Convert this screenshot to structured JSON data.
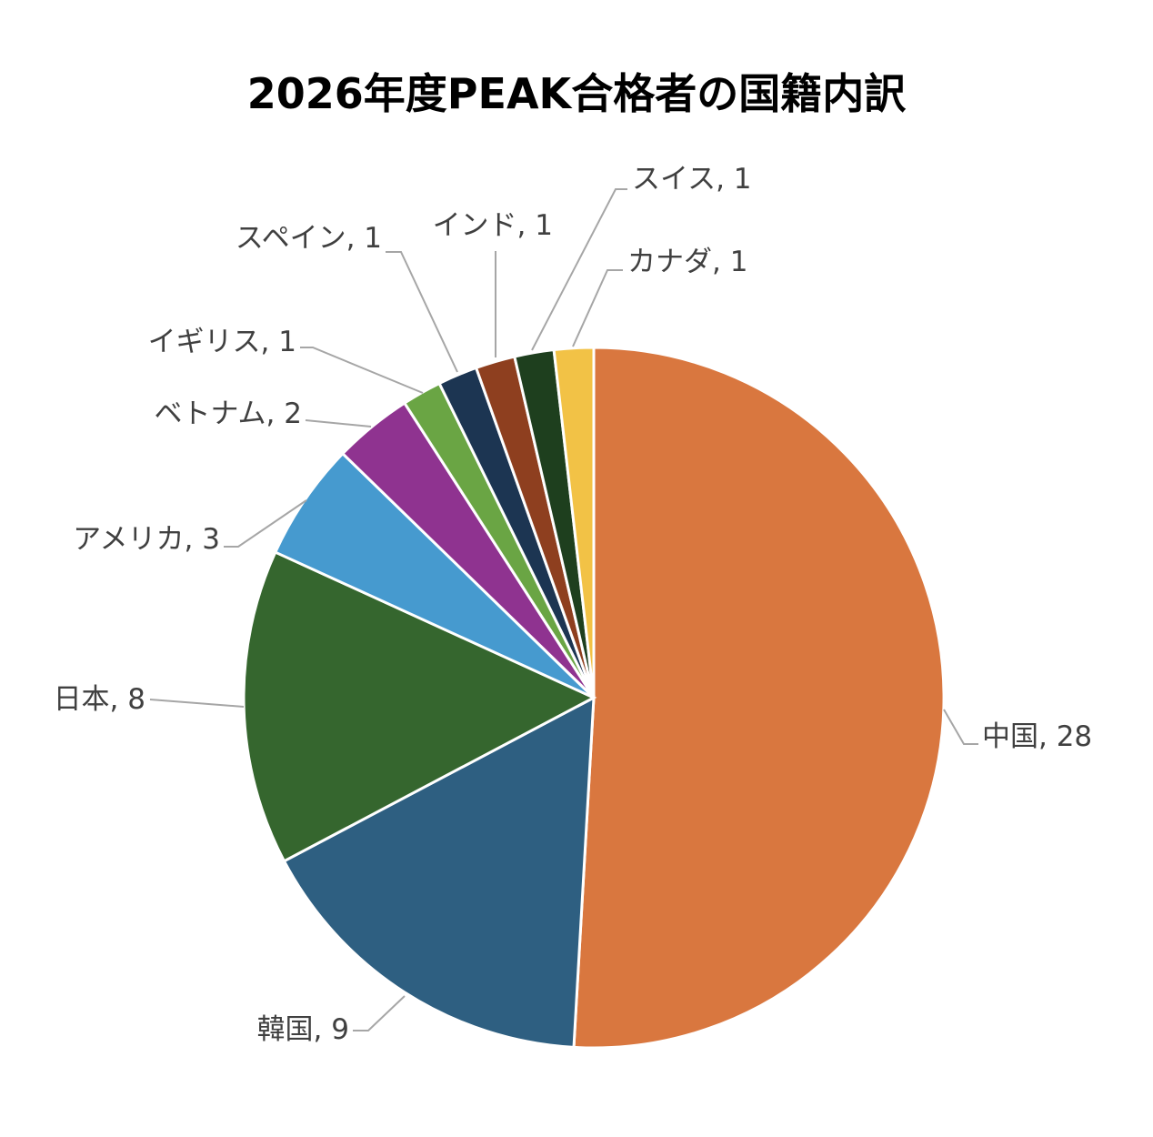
{
  "chart_data": {
    "type": "pie",
    "title": "2026年度PEAK合格者の国籍内訳",
    "label_format": "name, value",
    "slices": [
      {
        "name": "中国",
        "value": 28,
        "color": "#D9773F"
      },
      {
        "name": "韓国",
        "value": 9,
        "color": "#2E5F81"
      },
      {
        "name": "日本",
        "value": 8,
        "color": "#35662E"
      },
      {
        "name": "アメリカ",
        "value": 3,
        "color": "#469ACF"
      },
      {
        "name": "ベトナム",
        "value": 2,
        "color": "#8F3390"
      },
      {
        "name": "イギリス",
        "value": 1,
        "color": "#6AA544"
      },
      {
        "name": "スペイン",
        "value": 1,
        "color": "#1C3552"
      },
      {
        "name": "インド",
        "value": 1,
        "color": "#8E3F1F"
      },
      {
        "name": "スイス",
        "value": 1,
        "color": "#1E3F1E"
      },
      {
        "name": "カナダ",
        "value": 1,
        "color": "#F2C246"
      }
    ],
    "legend": "none"
  }
}
